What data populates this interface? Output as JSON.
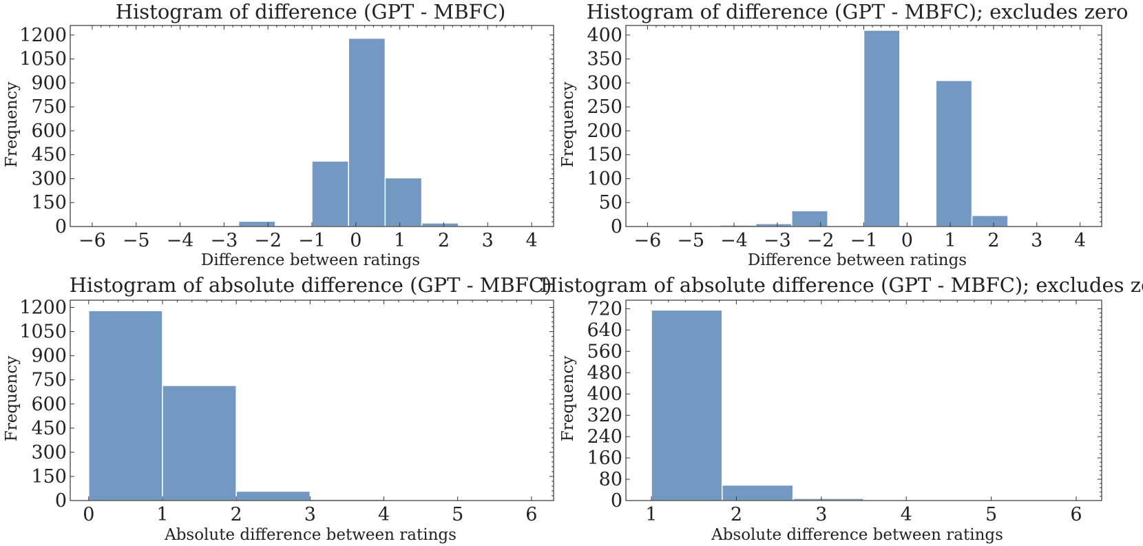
{
  "figure": {
    "bar_color": "#7399c2",
    "background": "#ffffff"
  },
  "chart_data": [
    {
      "type": "bar",
      "title": "Histogram of difference (GPT - MBFC)",
      "xlabel": "Difference between ratings",
      "ylabel": "Frequency",
      "xlim": [
        -6.5,
        4.5
      ],
      "ylim": [
        0,
        1260
      ],
      "xticks": [
        -6,
        -5,
        -4,
        -3,
        -2,
        -1,
        0,
        1,
        2,
        3,
        4
      ],
      "yticks": [
        0,
        150,
        300,
        450,
        600,
        750,
        900,
        1050,
        1200
      ],
      "bins": [
        {
          "x0": -6.0,
          "x1": -5.1667,
          "value": 0
        },
        {
          "x0": -5.1667,
          "x1": -4.3333,
          "value": 0
        },
        {
          "x0": -4.3333,
          "x1": -3.5,
          "value": 0
        },
        {
          "x0": -3.5,
          "x1": -2.6667,
          "value": 2
        },
        {
          "x0": -2.6667,
          "x1": -1.8333,
          "value": 33
        },
        {
          "x0": -1.8333,
          "x1": -1.0,
          "value": 0
        },
        {
          "x0": -1.0,
          "x1": -0.1667,
          "value": 410
        },
        {
          "x0": -0.1667,
          "x1": 0.6667,
          "value": 1180
        },
        {
          "x0": 0.6667,
          "x1": 1.5,
          "value": 305
        },
        {
          "x0": 1.5,
          "x1": 2.3333,
          "value": 22
        },
        {
          "x0": 2.3333,
          "x1": 3.1667,
          "value": 0
        },
        {
          "x0": 3.1667,
          "x1": 4.0,
          "value": 0
        }
      ]
    },
    {
      "type": "bar",
      "title": "Histogram of difference (GPT - MBFC); excludes zero",
      "xlabel": "Difference between ratings",
      "ylabel": "Frequency",
      "xlim": [
        -6.5,
        4.5
      ],
      "ylim": [
        0,
        420
      ],
      "xticks": [
        -6,
        -5,
        -4,
        -3,
        -2,
        -1,
        0,
        1,
        2,
        3,
        4
      ],
      "yticks": [
        0,
        50,
        100,
        150,
        200,
        250,
        300,
        350,
        400
      ],
      "bins": [
        {
          "x0": -6.0,
          "x1": -5.1667,
          "value": 0
        },
        {
          "x0": -5.1667,
          "x1": -4.3333,
          "value": 0
        },
        {
          "x0": -4.3333,
          "x1": -3.5,
          "value": 3
        },
        {
          "x0": -3.5,
          "x1": -2.6667,
          "value": 6
        },
        {
          "x0": -2.6667,
          "x1": -1.8333,
          "value": 33
        },
        {
          "x0": -1.8333,
          "x1": -1.0,
          "value": 0
        },
        {
          "x0": -1.0,
          "x1": -0.1667,
          "value": 410
        },
        {
          "x0": -0.1667,
          "x1": 0.6667,
          "value": 0
        },
        {
          "x0": 0.6667,
          "x1": 1.5,
          "value": 305
        },
        {
          "x0": 1.5,
          "x1": 2.3333,
          "value": 23
        },
        {
          "x0": 2.3333,
          "x1": 3.1667,
          "value": 2
        },
        {
          "x0": 3.1667,
          "x1": 4.0,
          "value": 0
        }
      ]
    },
    {
      "type": "bar",
      "title": "Histogram of absolute difference (GPT - MBFC)",
      "xlabel": "Absolute difference between ratings",
      "ylabel": "Frequency",
      "xlim": [
        -0.25,
        6.3
      ],
      "ylim": [
        0,
        1245
      ],
      "xticks": [
        0,
        1,
        2,
        3,
        4,
        5,
        6
      ],
      "yticks": [
        0,
        150,
        300,
        450,
        600,
        750,
        900,
        1050,
        1200
      ],
      "bins": [
        {
          "x0": 0,
          "x1": 1,
          "value": 1180
        },
        {
          "x0": 1,
          "x1": 2,
          "value": 715
        },
        {
          "x0": 2,
          "x1": 3,
          "value": 58
        },
        {
          "x0": 3,
          "x1": 4,
          "value": 8
        },
        {
          "x0": 4,
          "x1": 5,
          "value": 0
        },
        {
          "x0": 5,
          "x1": 6,
          "value": 0
        }
      ]
    },
    {
      "type": "bar",
      "title": "Histogram of absolute difference (GPT - MBFC); excludes zero",
      "xlabel": "Absolute difference between ratings",
      "ylabel": "Frequency",
      "xlim": [
        0.7,
        6.3
      ],
      "ylim": [
        0,
        752
      ],
      "xticks": [
        1,
        2,
        3,
        4,
        5,
        6
      ],
      "yticks": [
        0,
        80,
        160,
        240,
        320,
        400,
        480,
        560,
        640,
        720
      ],
      "bins": [
        {
          "x0": 1.0,
          "x1": 1.8333,
          "value": 715
        },
        {
          "x0": 1.8333,
          "x1": 2.6667,
          "value": 58
        },
        {
          "x0": 2.6667,
          "x1": 3.5,
          "value": 8
        },
        {
          "x0": 3.5,
          "x1": 4.3333,
          "value": 3
        },
        {
          "x0": 4.3333,
          "x1": 5.1667,
          "value": 0
        },
        {
          "x0": 5.1667,
          "x1": 6.0,
          "value": 0
        }
      ]
    }
  ]
}
